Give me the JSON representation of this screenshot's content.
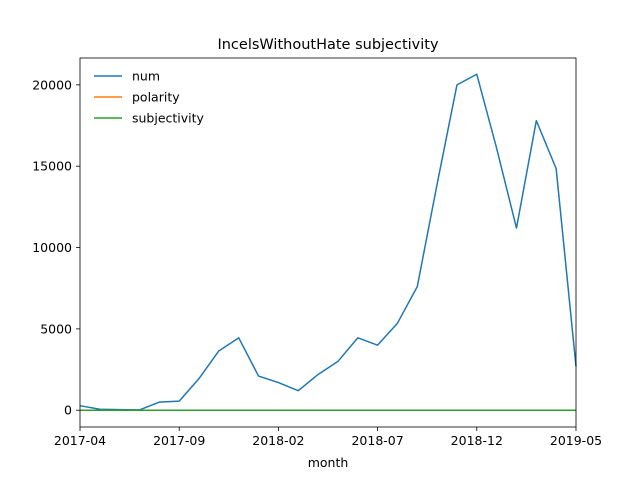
{
  "chart_data": {
    "type": "line",
    "title": "IncelsWithoutHate subjectivity",
    "xlabel": "month",
    "ylabel": "",
    "x": [
      "2017-04",
      "2017-05",
      "2017-06",
      "2017-07",
      "2017-08",
      "2017-09",
      "2017-10",
      "2017-11",
      "2017-12",
      "2018-01",
      "2018-02",
      "2018-03",
      "2018-04",
      "2018-05",
      "2018-06",
      "2018-07",
      "2018-08",
      "2018-09",
      "2018-10",
      "2018-11",
      "2018-12",
      "2019-01",
      "2019-02",
      "2019-03",
      "2019-04",
      "2019-05"
    ],
    "x_tick_labels": [
      "2017-04",
      "2017-09",
      "2018-02",
      "2018-07",
      "2018-12",
      "2019-05"
    ],
    "y_ticks": [
      0,
      5000,
      10000,
      15000,
      20000
    ],
    "ylim": [
      -1030,
      21650
    ],
    "legend_position": "top-left",
    "series": [
      {
        "name": "num",
        "color": "#1f77b4",
        "values": [
          280,
          60,
          40,
          20,
          500,
          560,
          1950,
          3650,
          4450,
          2100,
          1700,
          1200,
          2200,
          3000,
          4450,
          4000,
          5350,
          7600,
          13900,
          20000,
          20650,
          16100,
          11200,
          17800,
          14850,
          2700
        ]
      },
      {
        "name": "polarity",
        "color": "#ff7f0e",
        "values": [
          0.1,
          0.1,
          0.1,
          0.1,
          0.1,
          0.1,
          0.1,
          0.1,
          0.1,
          0.1,
          0.1,
          0.1,
          0.1,
          0.1,
          0.1,
          0.1,
          0.1,
          0.1,
          0.1,
          0.1,
          0.1,
          0.1,
          0.1,
          0.1,
          0.1,
          0.1
        ]
      },
      {
        "name": "subjectivity",
        "color": "#2ca02c",
        "values": [
          0.5,
          0.5,
          0.5,
          0.5,
          0.5,
          0.5,
          0.5,
          0.5,
          0.5,
          0.5,
          0.5,
          0.5,
          0.5,
          0.5,
          0.5,
          0.5,
          0.5,
          0.5,
          0.5,
          0.5,
          0.5,
          0.5,
          0.5,
          0.5,
          0.5,
          0.5
        ]
      }
    ]
  }
}
